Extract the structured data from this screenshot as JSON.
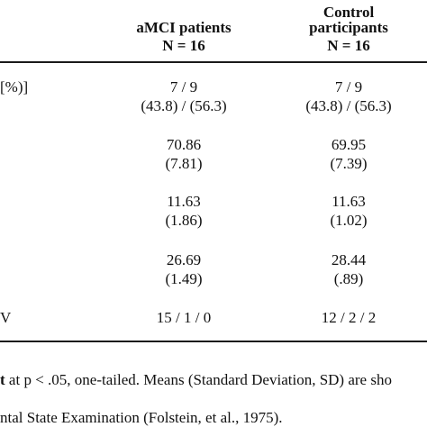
{
  "columns": [
    {
      "line1": "aMCI patients",
      "line2": "N = 16"
    },
    {
      "line0": "Control",
      "line1": "participants",
      "line2": "N = 16"
    }
  ],
  "rows": [
    {
      "stub": "[%)]",
      "c1": [
        "7 / 9",
        "(43.8) / (56.3)"
      ],
      "c2": [
        "7 / 9",
        "(43.8) / (56.3)"
      ]
    },
    {
      "stub": "",
      "c1": [
        "70.86",
        "(7.81)"
      ],
      "c2": [
        "69.95",
        "(7.39)"
      ]
    },
    {
      "stub": "",
      "c1": [
        "11.63",
        "(1.86)"
      ],
      "c2": [
        "11.63",
        "(1.02)"
      ]
    },
    {
      "stub": "",
      "c1": [
        "26.69",
        "(1.49)"
      ],
      "c2": [
        "28.44",
        "(.89)"
      ]
    },
    {
      "stub": "V",
      "c1": [
        "15 / 1 / 0"
      ],
      "c2": [
        "12 / 2 / 2"
      ]
    }
  ],
  "notes": [
    {
      "bold": "t",
      "rest": " at p < .05, one-tailed. Means (Standard Deviation, SD) are sho"
    },
    {
      "bold": "",
      "rest": "ntal State Examination (Folstein, et al., 1975)."
    }
  ]
}
